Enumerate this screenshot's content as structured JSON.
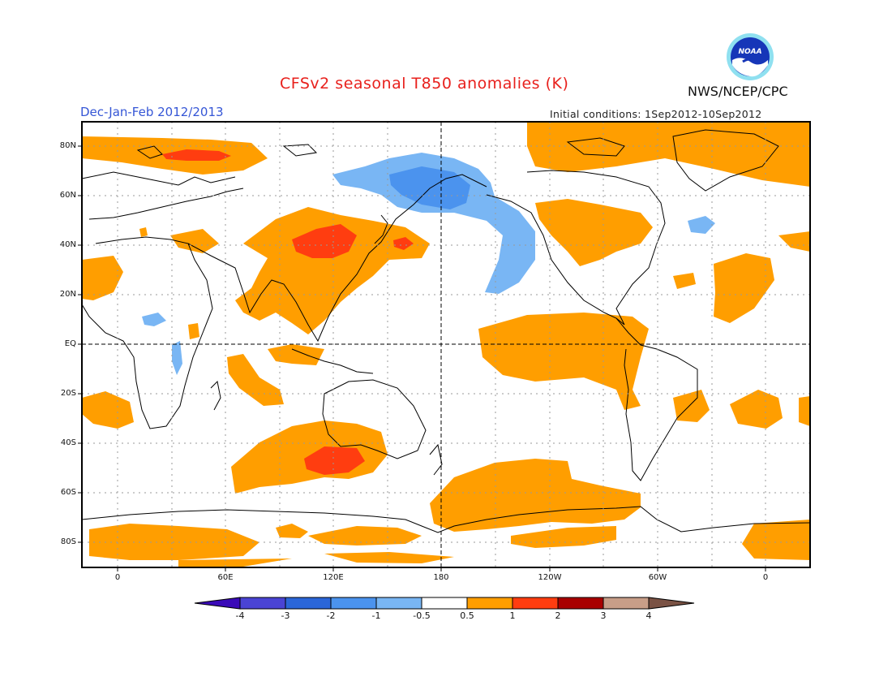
{
  "header": {
    "title": "CFSv2 seasonal T850 anomalies (K)",
    "org": "NWS/NCEP/CPC",
    "period": "Dec-Jan-Feb 2012/2013",
    "initial_conditions": "Initial conditions: 1Sep2012-10Sep2012",
    "logo_text": "NOAA"
  },
  "map": {
    "lat_labels": [
      "80N",
      "60N",
      "40N",
      "20N",
      "EQ",
      "20S",
      "40S",
      "60S",
      "80S"
    ],
    "lon_labels": [
      "0",
      "60E",
      "120E",
      "180",
      "120W",
      "60W",
      "0"
    ]
  },
  "colorbar": {
    "labels": [
      "-4",
      "-3",
      "-2",
      "-1",
      "-0.5",
      "0.5",
      "1",
      "2",
      "3",
      "4"
    ],
    "colors": [
      "#3a0ab8",
      "#4a44d4",
      "#2b66d8",
      "#4b93ee",
      "#79b6f4",
      "#ffffff",
      "#ff9e00",
      "#ff3d10",
      "#a80000",
      "#c89e88",
      "#7a5244"
    ]
  },
  "anomaly_colors": {
    "warm1": "#ff9e00",
    "warm2": "#ff3d10",
    "cool1": "#79b6f4",
    "cool2": "#4b93ee"
  }
}
